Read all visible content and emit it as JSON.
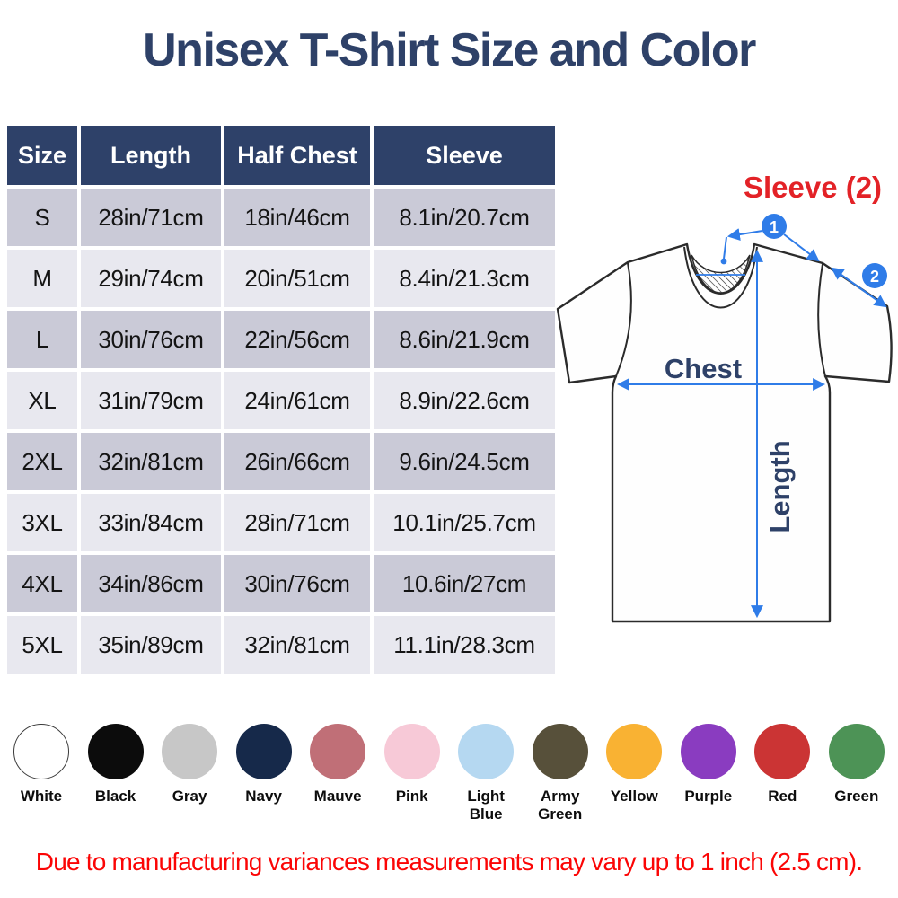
{
  "title": "Unisex T-Shirt Size and Color",
  "table": {
    "headers": [
      "Size",
      "Length",
      "Half Chest",
      "Sleeve"
    ],
    "rows": [
      {
        "size": "S",
        "length": "28in/71cm",
        "half_chest": "18in/46cm",
        "sleeve": "8.1in/20.7cm"
      },
      {
        "size": "M",
        "length": "29in/74cm",
        "half_chest": "20in/51cm",
        "sleeve": "8.4in/21.3cm"
      },
      {
        "size": "L",
        "length": "30in/76cm",
        "half_chest": "22in/56cm",
        "sleeve": "8.6in/21.9cm"
      },
      {
        "size": "XL",
        "length": "31in/79cm",
        "half_chest": "24in/61cm",
        "sleeve": "8.9in/22.6cm"
      },
      {
        "size": "2XL",
        "length": "32in/81cm",
        "half_chest": "26in/66cm",
        "sleeve": "9.6in/24.5cm"
      },
      {
        "size": "3XL",
        "length": "33in/84cm",
        "half_chest": "28in/71cm",
        "sleeve": "10.1in/25.7cm"
      },
      {
        "size": "4XL",
        "length": "34in/86cm",
        "half_chest": "30in/76cm",
        "sleeve": "10.6in/27cm"
      },
      {
        "size": "5XL",
        "length": "35in/89cm",
        "half_chest": "32in/81cm",
        "sleeve": "11.1in/28.3cm"
      }
    ]
  },
  "diagram": {
    "sleeve_label": "Sleeve (2)",
    "marker_1": "1",
    "marker_2": "2",
    "chest_label": "Chest",
    "length_label": "Length"
  },
  "swatches": [
    {
      "name": "White",
      "hex": "#ffffff",
      "outlined": true
    },
    {
      "name": "Black",
      "hex": "#0c0c0c"
    },
    {
      "name": "Gray",
      "hex": "#c7c7c7"
    },
    {
      "name": "Navy",
      "hex": "#16294a"
    },
    {
      "name": "Mauve",
      "hex": "#c06f77"
    },
    {
      "name": "Pink",
      "hex": "#f7c9d7"
    },
    {
      "name": "Light Blue",
      "hex": "#b5d8f1"
    },
    {
      "name": "Army Green",
      "hex": "#57503a"
    },
    {
      "name": "Yellow",
      "hex": "#f9b233"
    },
    {
      "name": "Purple",
      "hex": "#8a3cc0"
    },
    {
      "name": "Red",
      "hex": "#cb3434"
    },
    {
      "name": "Green",
      "hex": "#4d9356"
    }
  ],
  "note": "Due to manufacturing variances measurements may vary up to 1 inch (2.5 cm).",
  "colors": {
    "header_bg": "#2e4169",
    "row_dark": "#cacad7",
    "row_light": "#e8e8ef",
    "navy": "#2e4168",
    "blue": "#2f7ce8",
    "red_label": "#e32227",
    "note_red": "#fb0505",
    "outline": "#2b2b2b"
  }
}
